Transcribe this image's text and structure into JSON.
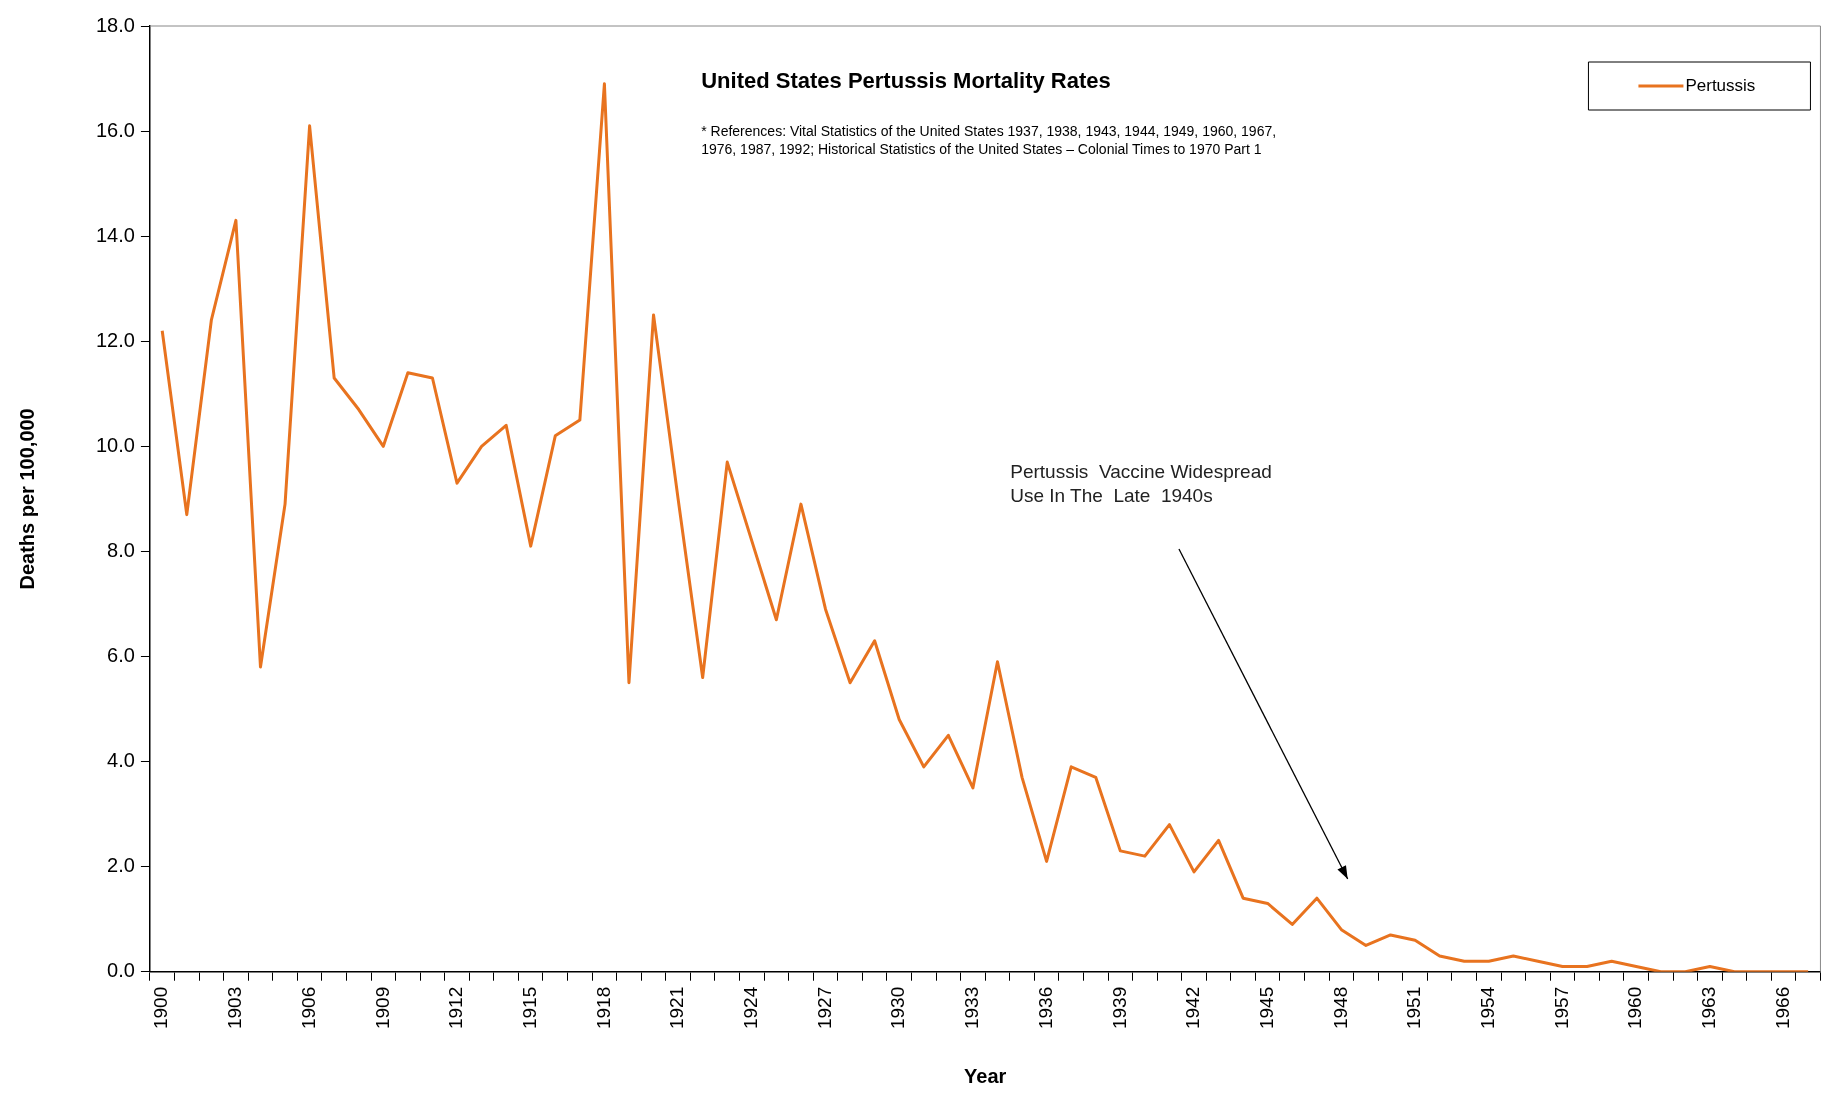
{
  "chart_data": {
    "type": "line",
    "title": "United States Pertussis Mortality Rates",
    "xlabel": "Year",
    "ylabel": "Deaths per 100,000",
    "categories": [
      "1900",
      null,
      null,
      "1903",
      null,
      null,
      "1906",
      null,
      null,
      "1909",
      null,
      null,
      "1912",
      null,
      null,
      "1915",
      null,
      null,
      "1918",
      null,
      null,
      "1921",
      null,
      null,
      "1924",
      null,
      null,
      "1927",
      null,
      null,
      "1930",
      null,
      null,
      "1933",
      null,
      null,
      "1936",
      null,
      null,
      "1939",
      null,
      null,
      "1942",
      null,
      null,
      "1945",
      null,
      null,
      "1948",
      null,
      null,
      "1951",
      null,
      null,
      "1954",
      null,
      null,
      "1957",
      null,
      null,
      "1960",
      null,
      null,
      "1963",
      null,
      null,
      "1966",
      null
    ],
    "series": [
      {
        "name": "Pertussis",
        "color": "#e8731f",
        "values": [
          12.2,
          8.7,
          12.4,
          14.3,
          5.8,
          8.9,
          16.1,
          11.3,
          10.7,
          10.0,
          11.4,
          11.3,
          9.3,
          10.0,
          10.4,
          8.1,
          10.2,
          10.5,
          16.9,
          5.5,
          12.5,
          9.0,
          5.6,
          9.7,
          8.2,
          6.7,
          8.9,
          6.9,
          5.5,
          6.3,
          4.8,
          3.9,
          4.5,
          3.5,
          5.9,
          3.7,
          2.1,
          3.9,
          3.7,
          2.3,
          2.2,
          2.8,
          1.9,
          2.5,
          1.4,
          1.3,
          0.9,
          1.4,
          0.8,
          0.5,
          0.7,
          0.6,
          0.3,
          0.2,
          0.2,
          0.3,
          0.2,
          0.1,
          0.1,
          0.2,
          0.1,
          0.0,
          0.0,
          0.1,
          0.0,
          0.0,
          0.0,
          0.0
        ]
      }
    ],
    "ylim": [
      0,
      18
    ],
    "yticks": [
      {
        "value": 0,
        "label": "0.0"
      },
      {
        "value": 2,
        "label": "2.0"
      },
      {
        "value": 4,
        "label": "4.0"
      },
      {
        "value": 6,
        "label": "6.0"
      },
      {
        "value": 8,
        "label": "8.0"
      },
      {
        "value": 10,
        "label": "10.0"
      },
      {
        "value": 12,
        "label": "12.0"
      },
      {
        "value": 14,
        "label": "14.0"
      },
      {
        "value": 16,
        "label": "16.0"
      },
      {
        "value": 18,
        "label": "18.0"
      }
    ],
    "legend": "top right",
    "marker": "none",
    "line_style": "solid",
    "annotations": [
      "* References: Vital Statistics of the United States 1937, 1938, 1943, 1944, 1949, 1960, 1967,\n1976, 1987, 1992; Historical Statistics of the United States – Colonial Times to 1970 Part 1",
      "Pertussis  Vaccine Widespread\nUse In The  Late  1940s"
    ]
  }
}
